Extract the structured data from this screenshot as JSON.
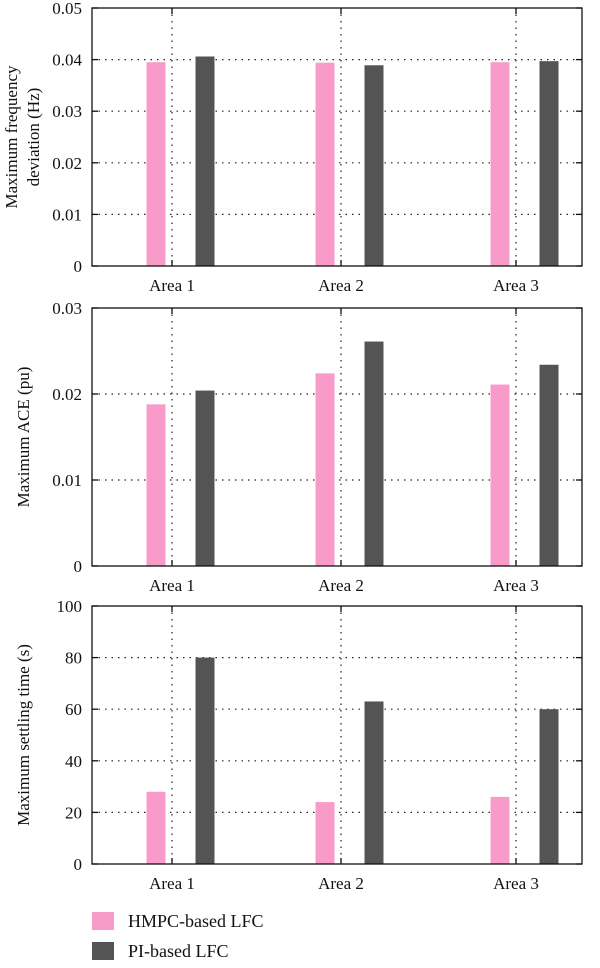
{
  "colors": {
    "hmpc": "#f99bc8",
    "pi": "#545454"
  },
  "legend": {
    "items": [
      {
        "label": "HMPC-based LFC",
        "color": "#f99bc8"
      },
      {
        "label": "PI-based LFC",
        "color": "#545454"
      }
    ]
  },
  "chart_data": [
    {
      "type": "bar",
      "categories": [
        "Area 1",
        "Area 2",
        "Area 3"
      ],
      "ylabel": "Maximum frequency deviation (Hz)",
      "ylim": [
        0,
        0.05
      ],
      "yticks": [
        0,
        0.01,
        0.02,
        0.03,
        0.04,
        0.05
      ],
      "ytick_labels": [
        "0",
        "0.01",
        "0.02",
        "0.03",
        "0.04",
        "0.05"
      ],
      "grid": true,
      "series": [
        {
          "name": "HMPC-based LFC",
          "values": [
            0.0395,
            0.0394,
            0.0395
          ]
        },
        {
          "name": "PI-based LFC",
          "values": [
            0.0406,
            0.0389,
            0.0397
          ]
        }
      ]
    },
    {
      "type": "bar",
      "categories": [
        "Area 1",
        "Area 2",
        "Area 3"
      ],
      "ylabel": "Maximum ACE (pu)",
      "ylim": [
        0,
        0.03
      ],
      "yticks": [
        0,
        0.01,
        0.02,
        0.03
      ],
      "ytick_labels": [
        "0",
        "0.01",
        "0.02",
        "0.03"
      ],
      "grid": true,
      "series": [
        {
          "name": "HMPC-based LFC",
          "values": [
            0.0188,
            0.0224,
            0.0211
          ]
        },
        {
          "name": "PI-based LFC",
          "values": [
            0.0204,
            0.0261,
            0.0234
          ]
        }
      ]
    },
    {
      "type": "bar",
      "categories": [
        "Area 1",
        "Area 2",
        "Area 3"
      ],
      "ylabel": "Maximum settling time (s)",
      "ylim": [
        0,
        100
      ],
      "yticks": [
        0,
        20,
        40,
        60,
        80,
        100
      ],
      "ytick_labels": [
        "0",
        "20",
        "40",
        "60",
        "80",
        "100"
      ],
      "grid": true,
      "series": [
        {
          "name": "HMPC-based LFC",
          "values": [
            28,
            24,
            26
          ]
        },
        {
          "name": "PI-based LFC",
          "values": [
            80,
            63,
            60
          ]
        }
      ]
    }
  ]
}
